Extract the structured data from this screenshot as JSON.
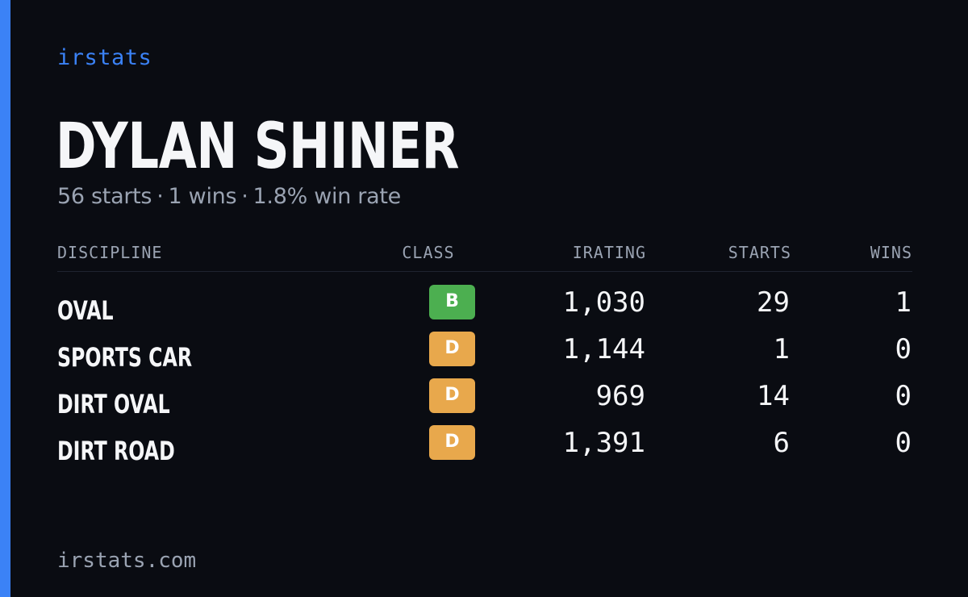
{
  "brand": "irstats",
  "driver": {
    "name": "DYLAN SHINER",
    "summary": {
      "starts": "56 starts",
      "wins": "1 wins",
      "win_rate": "1.8% win rate",
      "separator": "·"
    }
  },
  "table": {
    "headers": {
      "discipline": "DISCIPLINE",
      "class": "CLASS",
      "irating": "IRATING",
      "starts": "STARTS",
      "wins": "WINS"
    },
    "rows": [
      {
        "discipline": "OVAL",
        "class": "B",
        "class_color": "#4caf50",
        "irating": "1,030",
        "starts": "29",
        "wins": "1"
      },
      {
        "discipline": "SPORTS CAR",
        "class": "D",
        "class_color": "#e8a84c",
        "irating": "1,144",
        "starts": "1",
        "wins": "0"
      },
      {
        "discipline": "DIRT OVAL",
        "class": "D",
        "class_color": "#e8a84c",
        "irating": "969",
        "starts": "14",
        "wins": "0"
      },
      {
        "discipline": "DIRT ROAD",
        "class": "D",
        "class_color": "#e8a84c",
        "irating": "1,391",
        "starts": "6",
        "wins": "0"
      }
    ]
  },
  "footer": "irstats.com",
  "colors": {
    "accent": "#3b82f6",
    "background": "#0a0c12"
  }
}
